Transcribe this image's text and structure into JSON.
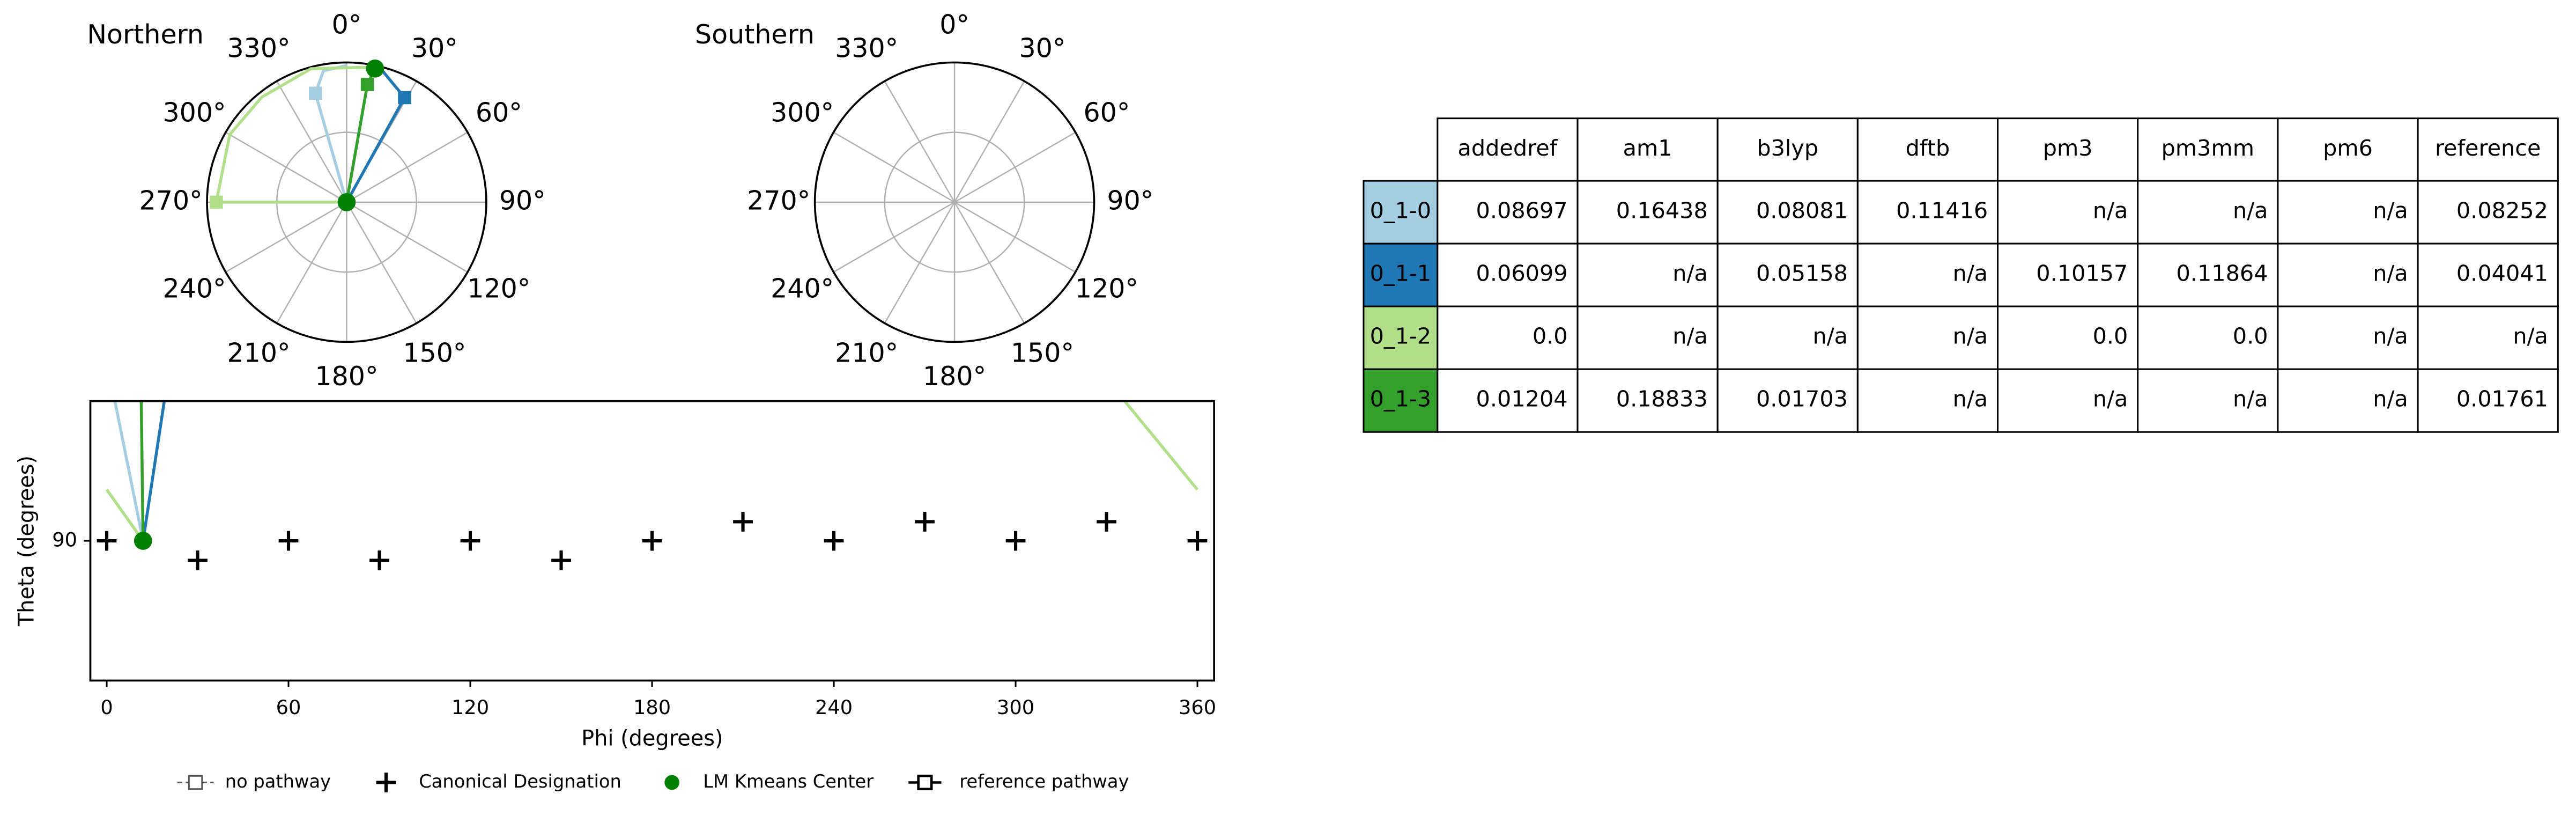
{
  "chart_data": [
    {
      "type": "polar",
      "title": "Northern",
      "rlim": [
        0,
        90
      ],
      "rgrid": [
        45
      ],
      "angle_ticks": [
        {
          "value": 0,
          "label": "0°"
        },
        {
          "value": 30,
          "label": "30°"
        },
        {
          "value": 60,
          "label": "60°"
        },
        {
          "value": 90,
          "label": "90°"
        },
        {
          "value": 120,
          "label": "120°"
        },
        {
          "value": 150,
          "label": "150°"
        },
        {
          "value": 180,
          "label": "180°"
        },
        {
          "value": 210,
          "label": "210°"
        },
        {
          "value": 240,
          "label": "240°"
        },
        {
          "value": 270,
          "label": "270°"
        },
        {
          "value": 300,
          "label": "300°"
        },
        {
          "value": 330,
          "label": "330°"
        }
      ],
      "series": [
        {
          "color": "#a6cee3",
          "angle": [
            0,
            344,
            350,
            0
          ],
          "r": [
            0,
            73,
            86,
            88
          ]
        },
        {
          "color": "#1f78b4",
          "angle": [
            0,
            29,
            15
          ],
          "r": [
            0,
            77,
            88
          ]
        },
        {
          "color": "#b2df8a",
          "angle": [
            0,
            270,
            300,
            321,
            345,
            12
          ],
          "r": [
            0,
            84,
            87,
            87,
            89,
            89
          ]
        },
        {
          "color": "#33a02c",
          "angle": [
            0,
            10,
            12
          ],
          "r": [
            0,
            77,
            88
          ]
        }
      ],
      "kmeans": {
        "color": "#008000",
        "angle": [
          0,
          12
        ],
        "r": [
          0,
          88
        ]
      }
    },
    {
      "type": "polar",
      "title": "Southern",
      "rlim": [
        0,
        90
      ],
      "rgrid": [
        45
      ],
      "angle_ticks": [
        {
          "value": 0,
          "label": "0°"
        },
        {
          "value": 30,
          "label": "30°"
        },
        {
          "value": 60,
          "label": "60°"
        },
        {
          "value": 90,
          "label": "90°"
        },
        {
          "value": 120,
          "label": "120°"
        },
        {
          "value": 150,
          "label": "150°"
        },
        {
          "value": 180,
          "label": "180°"
        },
        {
          "value": 210,
          "label": "210°"
        },
        {
          "value": 240,
          "label": "240°"
        },
        {
          "value": 270,
          "label": "270°"
        },
        {
          "value": 300,
          "label": "300°"
        },
        {
          "value": 330,
          "label": "330°"
        }
      ],
      "series": []
    },
    {
      "type": "line",
      "xlabel": "Phi (degrees)",
      "ylabel": "Theta (degrees)",
      "xlim": [
        -5.4,
        365.5
      ],
      "ylim": [
        60,
        120
      ],
      "xticks": [
        0,
        60,
        120,
        180,
        240,
        300,
        360
      ],
      "yticks": [
        90
      ],
      "series": [
        {
          "color": "#a6cee3",
          "x": [
            12,
            2.7
          ],
          "y": [
            90,
            120
          ]
        },
        {
          "color": "#1f78b4",
          "x": [
            12,
            19
          ],
          "y": [
            90,
            120
          ]
        },
        {
          "color": "#b2df8a",
          "x": [
            0,
            12,
            null,
            336,
            360
          ],
          "y": [
            101,
            90,
            null,
            120,
            101
          ]
        },
        {
          "color": "#33a02c",
          "x": [
            12,
            11.4
          ],
          "y": [
            90,
            120
          ]
        }
      ],
      "canonical": {
        "x": [
          0,
          30,
          60,
          90,
          120,
          150,
          180,
          210,
          240,
          270,
          300,
          330,
          360
        ],
        "y": [
          90,
          85.8,
          90,
          85.8,
          90,
          85.8,
          90,
          94.1,
          90,
          94.1,
          90,
          94.1,
          90
        ]
      },
      "kmeans": {
        "color": "#008000",
        "x": [
          12
        ],
        "y": [
          90
        ]
      }
    }
  ],
  "legend": [
    "no pathway",
    "Canonical Designation",
    "LM Kmeans Center",
    "reference pathway"
  ],
  "table": {
    "columns": [
      "addedref",
      "am1",
      "b3lyp",
      "dftb",
      "pm3",
      "pm3mm",
      "pm6",
      "reference"
    ],
    "rows": [
      {
        "label": "0_1-0",
        "color": "#a6cee3",
        "cells": [
          "0.08697",
          "0.16438",
          "0.08081",
          "0.11416",
          "n/a",
          "n/a",
          "n/a",
          "0.08252"
        ]
      },
      {
        "label": "0_1-1",
        "color": "#1f78b4",
        "cells": [
          "0.06099",
          "n/a",
          "0.05158",
          "n/a",
          "0.10157",
          "0.11864",
          "n/a",
          "0.04041"
        ]
      },
      {
        "label": "0_1-2",
        "color": "#b2df8a",
        "cells": [
          "0.0",
          "n/a",
          "n/a",
          "n/a",
          "0.0",
          "0.0",
          "n/a",
          "n/a"
        ]
      },
      {
        "label": "0_1-3",
        "color": "#33a02c",
        "cells": [
          "0.01204",
          "0.18833",
          "0.01703",
          "n/a",
          "n/a",
          "n/a",
          "n/a",
          "0.01761"
        ]
      }
    ]
  }
}
